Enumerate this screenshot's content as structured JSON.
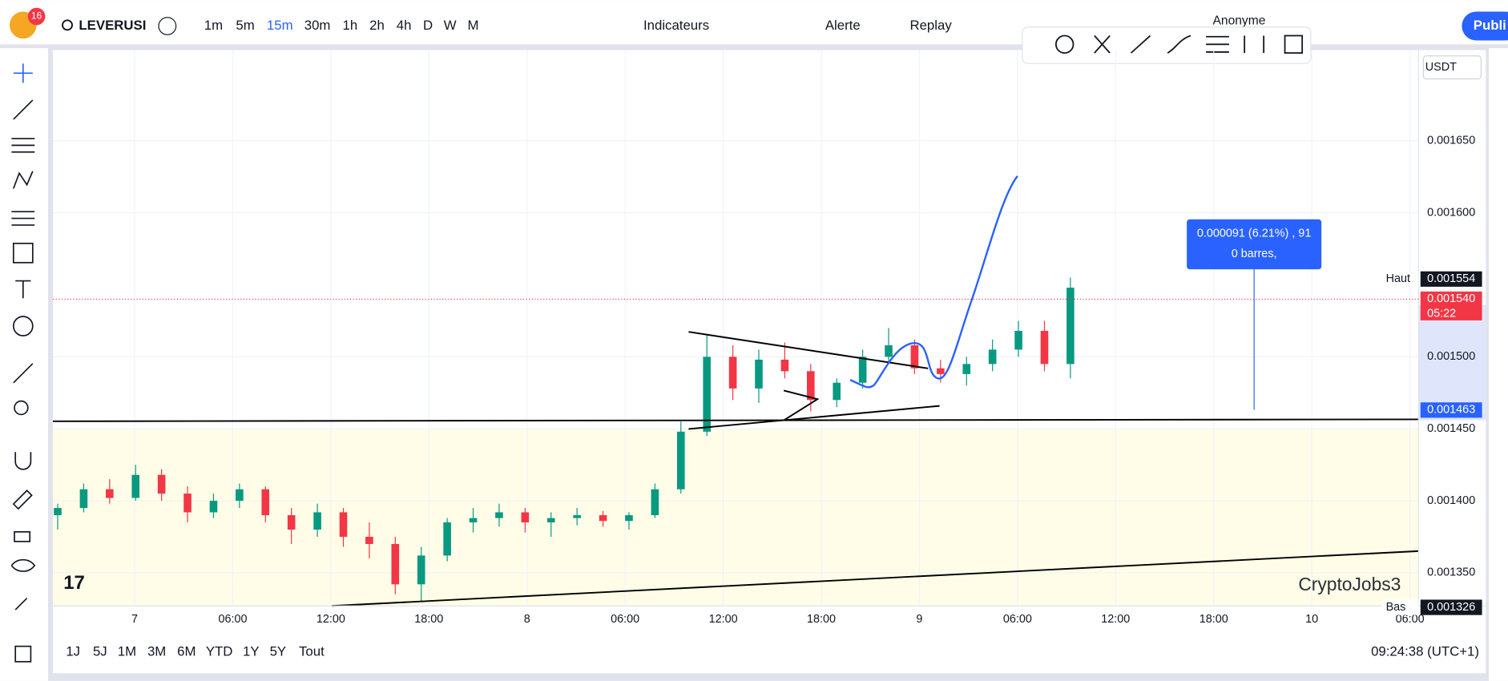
{
  "toolbar": {
    "symbol": "LEVERUSI",
    "badge": "16",
    "intervals": [
      "1m",
      "5m",
      "15m",
      "30m",
      "1h",
      "2h",
      "4h",
      "D",
      "W",
      "M"
    ],
    "indicators": "Indicateurs",
    "alert": "Alerte",
    "replay": "Replay",
    "account": "Anonyme",
    "publish": "Publi"
  },
  "chart_data": {
    "type": "candlestick",
    "currency": "USDT",
    "watermark": "CryptoJobs3",
    "ylim": [
      0.001327,
      0.001713
    ],
    "yticks": [
      {
        "value": 0.00165,
        "label": "0.001650"
      },
      {
        "value": 0.0016,
        "label": "0.001600"
      },
      {
        "value": 0.0015,
        "label": "0.001500"
      },
      {
        "value": 0.00145,
        "label": "0.001450"
      },
      {
        "value": 0.0014,
        "label": "0.001400"
      },
      {
        "value": 0.00135,
        "label": "0.001350"
      }
    ],
    "xticks": [
      "7",
      "06:00",
      "12:00",
      "18:00",
      "8",
      "06:00",
      "12:00",
      "18:00",
      "9",
      "06:00",
      "12:00",
      "18:00",
      "10",
      "06:00"
    ],
    "up_color": "#089981",
    "down_color": "#f23645",
    "candles": [
      [
        0.00139,
        0.001398,
        0.00138,
        0.001395
      ],
      [
        0.001395,
        0.001412,
        0.001392,
        0.001408
      ],
      [
        0.001408,
        0.001415,
        0.001398,
        0.001402
      ],
      [
        0.001402,
        0.001425,
        0.0014,
        0.001418
      ],
      [
        0.001418,
        0.001422,
        0.0014,
        0.001405
      ],
      [
        0.001405,
        0.00141,
        0.001385,
        0.001392
      ],
      [
        0.001392,
        0.001405,
        0.001388,
        0.0014
      ],
      [
        0.0014,
        0.001412,
        0.001395,
        0.001408
      ],
      [
        0.001408,
        0.00141,
        0.001385,
        0.00139
      ],
      [
        0.00139,
        0.001395,
        0.00137,
        0.00138
      ],
      [
        0.00138,
        0.001398,
        0.001375,
        0.001392
      ],
      [
        0.001392,
        0.001395,
        0.001368,
        0.001375
      ],
      [
        0.001375,
        0.001385,
        0.00136,
        0.00137
      ],
      [
        0.00137,
        0.001375,
        0.001335,
        0.001342
      ],
      [
        0.001342,
        0.001368,
        0.00133,
        0.001362
      ],
      [
        0.001362,
        0.001388,
        0.001358,
        0.001385
      ],
      [
        0.001385,
        0.001395,
        0.001378,
        0.001388
      ],
      [
        0.001388,
        0.001398,
        0.001382,
        0.001392
      ],
      [
        0.001392,
        0.001395,
        0.001378,
        0.001385
      ],
      [
        0.001385,
        0.001392,
        0.001375,
        0.001388
      ],
      [
        0.001388,
        0.001395,
        0.001383,
        0.00139
      ],
      [
        0.00139,
        0.001393,
        0.001382,
        0.001386
      ],
      [
        0.001386,
        0.001392,
        0.00138,
        0.00139
      ],
      [
        0.00139,
        0.001412,
        0.001388,
        0.001408
      ],
      [
        0.001408,
        0.001455,
        0.001405,
        0.001448
      ],
      [
        0.001448,
        0.001515,
        0.001445,
        0.0015
      ],
      [
        0.0015,
        0.001508,
        0.00147,
        0.001478
      ],
      [
        0.001478,
        0.001505,
        0.001468,
        0.001498
      ],
      [
        0.001498,
        0.00151,
        0.001485,
        0.00149
      ],
      [
        0.00149,
        0.001495,
        0.001462,
        0.00147
      ],
      [
        0.00147,
        0.001485,
        0.001465,
        0.001482
      ],
      [
        0.001482,
        0.001505,
        0.001478,
        0.0015
      ],
      [
        0.0015,
        0.00152,
        0.001495,
        0.001508
      ],
      [
        0.001508,
        0.001512,
        0.001488,
        0.001492
      ],
      [
        0.001492,
        0.001498,
        0.001482,
        0.001488
      ],
      [
        0.001488,
        0.0015,
        0.00148,
        0.001495
      ],
      [
        0.001495,
        0.001512,
        0.00149,
        0.001505
      ],
      [
        0.001505,
        0.001525,
        0.0015,
        0.001518
      ],
      [
        0.001518,
        0.001525,
        0.00149,
        0.001495
      ],
      [
        0.001495,
        0.001555,
        0.001485,
        0.001548
      ]
    ],
    "price_labels": [
      {
        "name": "Haut",
        "value": 0.001554
      },
      {
        "name": "Bas",
        "value": 0.001326
      },
      {
        "value": 0.00154,
        "label": "0.001540",
        "countdown": "05:22"
      },
      {
        "value": 0.001463
      }
    ],
    "measure": {
      "line1": "0.000091 (6.21%) , 91",
      "line2": "0 barres,"
    }
  },
  "bottom": {
    "ranges": [
      "1J",
      "5J",
      "1M",
      "3M",
      "6M",
      "YTD",
      "1Y",
      "5Y",
      "Tout"
    ],
    "clock": "09:24:38 (UTC+1)"
  }
}
